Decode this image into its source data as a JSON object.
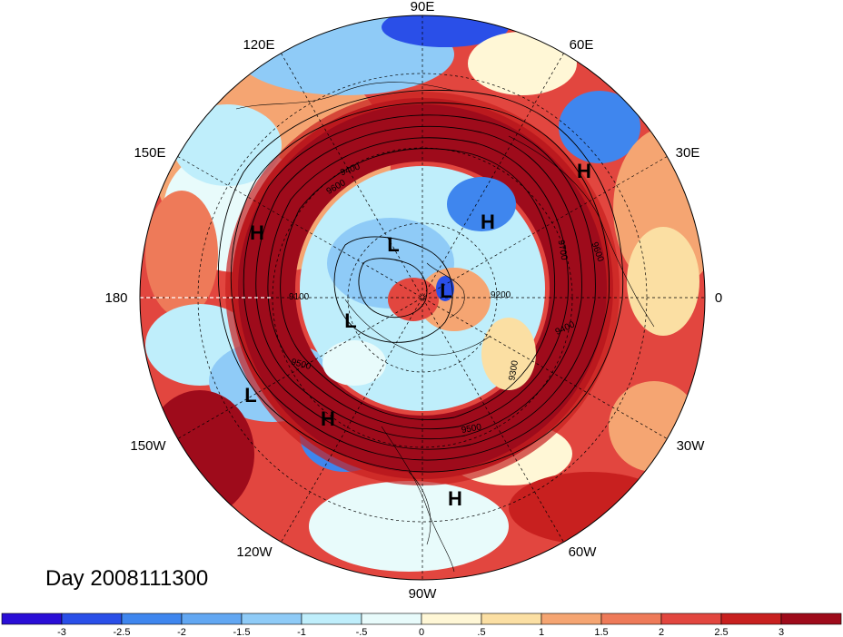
{
  "title": "Day 2008111300",
  "colors": {
    "land_contour": "#000000",
    "grid": "#000000",
    "background": "#ffffff"
  },
  "longitude_labels": [
    {
      "id": "lon-90e",
      "text": "90E"
    },
    {
      "id": "lon-60e",
      "text": "60E"
    },
    {
      "id": "lon-30e",
      "text": "30E"
    },
    {
      "id": "lon-0",
      "text": "0"
    },
    {
      "id": "lon-30w",
      "text": "30W"
    },
    {
      "id": "lon-60w",
      "text": "60W"
    },
    {
      "id": "lon-90w",
      "text": "90W"
    },
    {
      "id": "lon-120w",
      "text": "120W"
    },
    {
      "id": "lon-150w",
      "text": "150W"
    },
    {
      "id": "lon-180",
      "text": "180"
    },
    {
      "id": "lon-150e",
      "text": "150E"
    },
    {
      "id": "lon-120e",
      "text": "120E"
    }
  ],
  "pressure_centers": [
    {
      "id": "h-1",
      "text": "H"
    },
    {
      "id": "h-2",
      "text": "H"
    },
    {
      "id": "h-3",
      "text": "H"
    },
    {
      "id": "h-4",
      "text": "H"
    },
    {
      "id": "h-5",
      "text": "H"
    },
    {
      "id": "l-1",
      "text": "L"
    },
    {
      "id": "l-2",
      "text": "L"
    },
    {
      "id": "l-3",
      "text": "L"
    },
    {
      "id": "l-4",
      "text": "L"
    }
  ],
  "contour_labels": [
    {
      "id": "c-9100",
      "text": "9100"
    },
    {
      "id": "c-9200",
      "text": "9200"
    },
    {
      "id": "c-9300",
      "text": "9300"
    },
    {
      "id": "c-9400a",
      "text": "9400"
    },
    {
      "id": "c-9400b",
      "text": "9400"
    },
    {
      "id": "c-9500a",
      "text": "9500"
    },
    {
      "id": "c-9500b",
      "text": "9500"
    },
    {
      "id": "c-9600a",
      "text": "9600"
    },
    {
      "id": "c-9600b",
      "text": "9600"
    },
    {
      "id": "c-9700",
      "text": "9700"
    }
  ],
  "colorbar": {
    "colors": [
      "#2a0ed6",
      "#2a4fe8",
      "#3f86ee",
      "#62a7f2",
      "#8fcbf7",
      "#bfeefb",
      "#e8fbfb",
      "#fff7d6",
      "#fbdfa3",
      "#f5a572",
      "#ee7a59",
      "#e2463f",
      "#c8201f",
      "#9e0b1b"
    ],
    "labels": [
      "-3",
      "-2.5",
      "-2",
      "-1.5",
      "-1",
      "-.5",
      "0",
      ".5",
      "1",
      "1.5",
      "2",
      "2.5",
      "3"
    ]
  }
}
